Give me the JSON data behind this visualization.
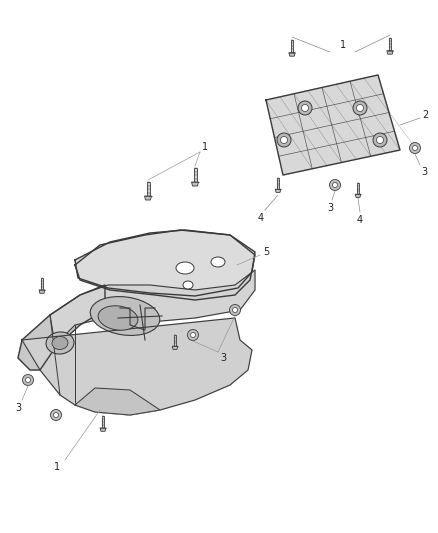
{
  "bg_color": "#ffffff",
  "line_color": "#3a3a3a",
  "gray_fill": "#e0e0e0",
  "dark_fill": "#b0b0b0",
  "figsize": [
    4.38,
    5.33
  ],
  "dpi": 100
}
